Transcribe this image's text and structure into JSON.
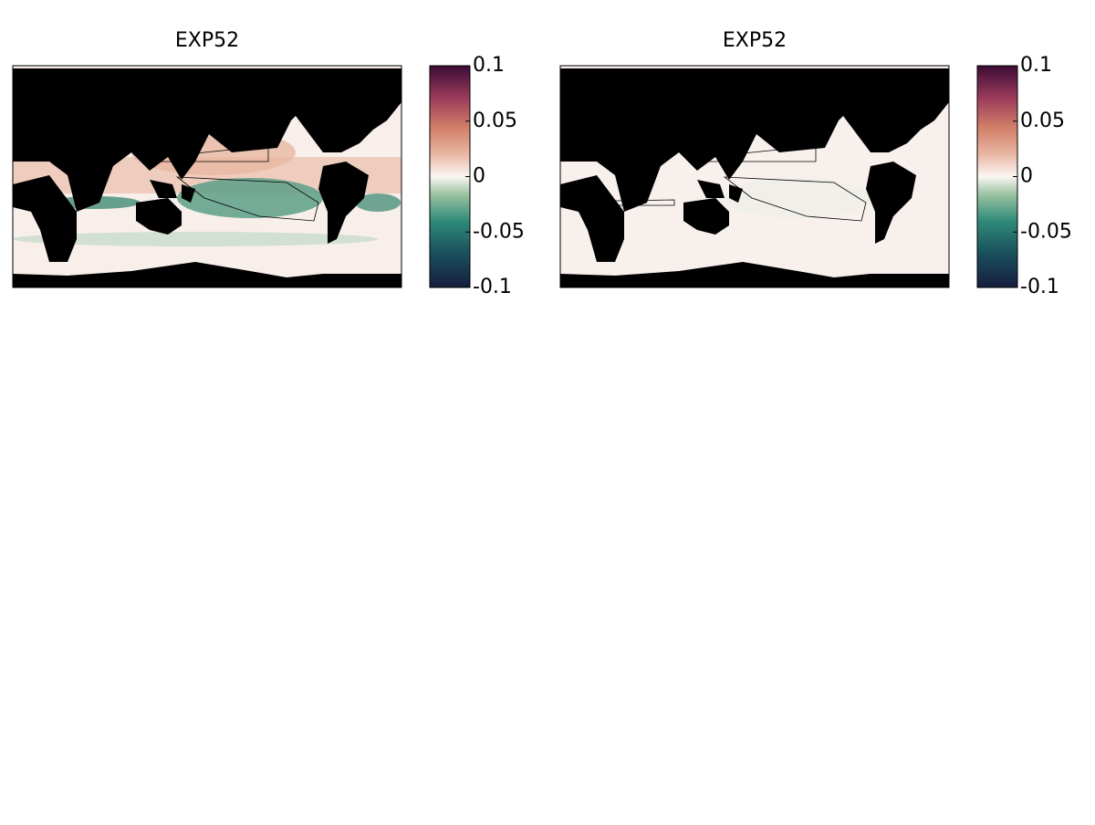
{
  "panels": [
    {
      "title": "EXP52",
      "colorbar": {
        "lim": [
          -0.1,
          0.1
        ],
        "ticks": [
          -0.1,
          -0.05,
          0,
          0.05,
          0.1
        ]
      }
    },
    {
      "title": "EXP52",
      "colorbar": {
        "lim": [
          -0.1,
          0.1
        ],
        "ticks": [
          -0.1,
          -0.05,
          0,
          0.05,
          0.1
        ]
      }
    }
  ]
}
